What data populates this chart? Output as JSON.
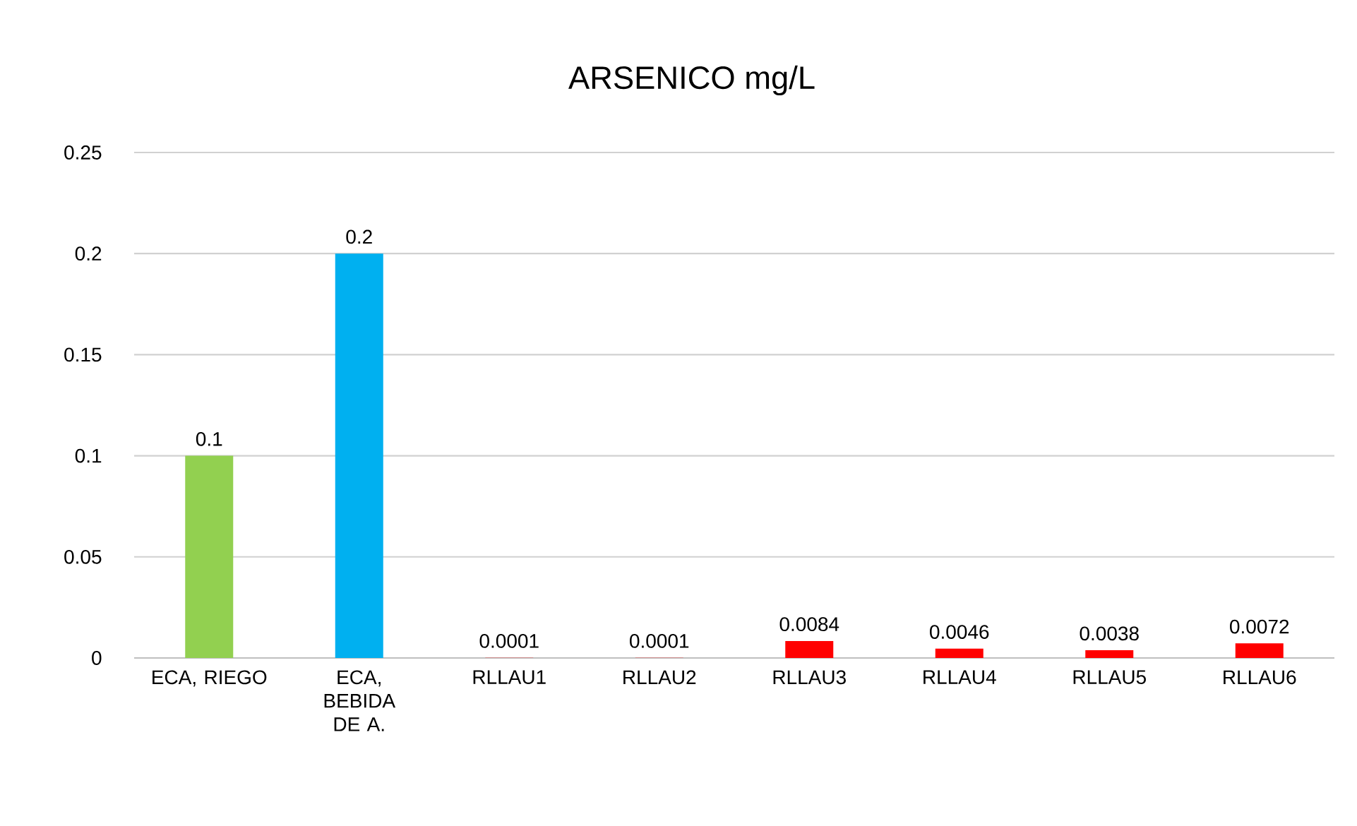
{
  "chart_data": {
    "type": "bar",
    "title": "ARSENICO mg/L",
    "categories": [
      "ECA, RIEGO",
      "ECA, BEBIDA DE A.",
      "RLLAU1",
      "RLLAU2",
      "RLLAU3",
      "RLLAU4",
      "RLLAU5",
      "RLLAU6"
    ],
    "values": [
      0.1,
      0.2,
      0.0001,
      0.0001,
      0.0084,
      0.0046,
      0.0038,
      0.0072
    ],
    "colors": [
      "#92d050",
      "#00b0f0",
      "#ff0000",
      "#ff0000",
      "#ff0000",
      "#ff0000",
      "#ff0000",
      "#ff0000"
    ],
    "ylim": [
      0,
      0.25
    ],
    "yticks": [
      0,
      0.05,
      0.1,
      0.15,
      0.2,
      0.25
    ],
    "grid": "y",
    "data_labels": true
  }
}
